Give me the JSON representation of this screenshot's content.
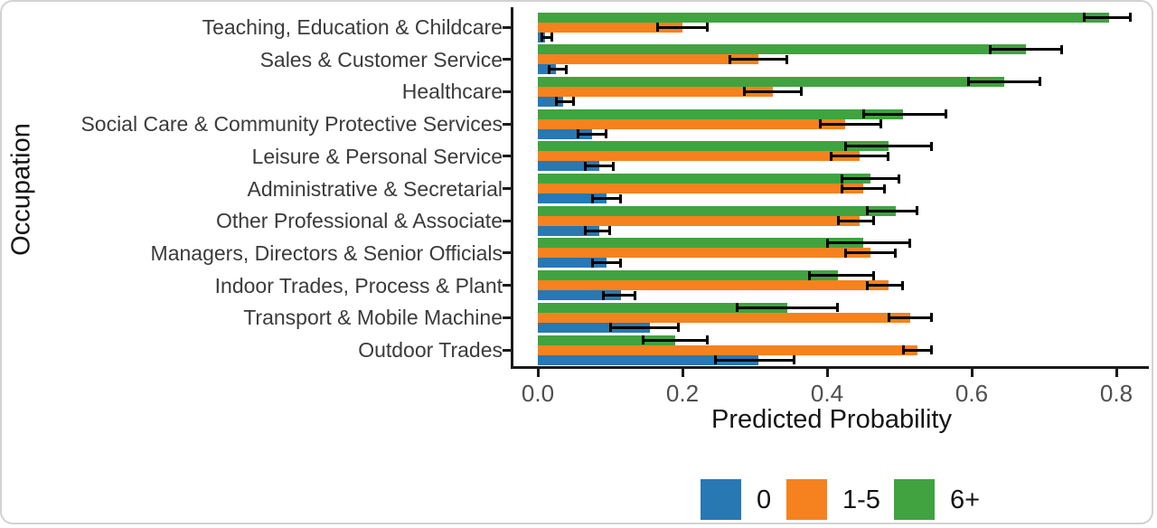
{
  "chart_data": {
    "type": "bar",
    "orientation": "horizontal",
    "title": "",
    "xlabel": "Predicted Probability",
    "ylabel": "Occupation",
    "xlim": [
      0.0,
      0.85
    ],
    "xticks": [
      "0.0",
      "0.2",
      "0.4",
      "0.6",
      "0.8"
    ],
    "xtick_values": [
      0.0,
      0.2,
      0.4,
      0.6,
      0.8
    ],
    "grid": false,
    "error_bars": true,
    "legend_position": "bottom",
    "categories": [
      "Teaching, Education & Childcare",
      "Sales & Customer Service",
      "Healthcare",
      "Social Care & Community Protective Services",
      "Leisure & Personal Service",
      "Administrative & Secretarial",
      "Other Professional & Associate",
      "Managers, Directors & Senior Officials",
      "Indoor Trades, Process & Plant",
      "Transport & Mobile Machine",
      "Outdoor Trades"
    ],
    "series": [
      {
        "name": "0",
        "color": "#2878b4",
        "values": [
          0.01,
          0.025,
          0.035,
          0.075,
          0.085,
          0.095,
          0.085,
          0.095,
          0.115,
          0.155,
          0.305
        ],
        "ci_low": [
          0.005,
          0.015,
          0.025,
          0.055,
          0.065,
          0.075,
          0.065,
          0.075,
          0.09,
          0.1,
          0.245
        ],
        "ci_high": [
          0.02,
          0.04,
          0.05,
          0.095,
          0.105,
          0.115,
          0.1,
          0.115,
          0.135,
          0.195,
          0.355
        ]
      },
      {
        "name": "1-5",
        "color": "#f5821e",
        "values": [
          0.2,
          0.305,
          0.325,
          0.425,
          0.445,
          0.45,
          0.445,
          0.46,
          0.485,
          0.515,
          0.525
        ],
        "ci_low": [
          0.165,
          0.265,
          0.285,
          0.39,
          0.405,
          0.42,
          0.415,
          0.425,
          0.455,
          0.485,
          0.505
        ],
        "ci_high": [
          0.235,
          0.345,
          0.365,
          0.475,
          0.485,
          0.48,
          0.465,
          0.495,
          0.505,
          0.545,
          0.545
        ]
      },
      {
        "name": "6+",
        "color": "#40a33f",
        "values": [
          0.79,
          0.675,
          0.645,
          0.505,
          0.485,
          0.46,
          0.495,
          0.45,
          0.415,
          0.345,
          0.19
        ],
        "ci_low": [
          0.755,
          0.625,
          0.595,
          0.45,
          0.425,
          0.42,
          0.455,
          0.4,
          0.375,
          0.275,
          0.145
        ],
        "ci_high": [
          0.82,
          0.725,
          0.695,
          0.565,
          0.545,
          0.5,
          0.525,
          0.515,
          0.465,
          0.415,
          0.235
        ]
      }
    ]
  }
}
